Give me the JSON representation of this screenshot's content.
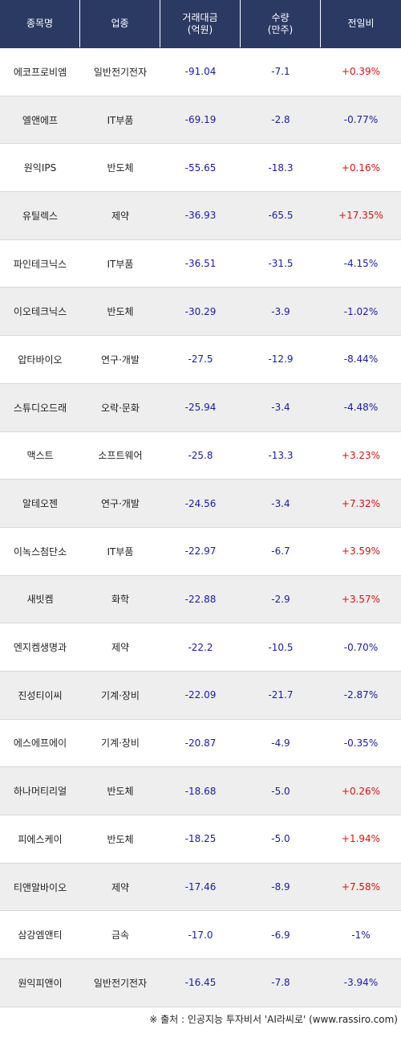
{
  "headers": [
    "종목명",
    "업종",
    "거래대금\n(억원)",
    "수량\n(만주)",
    "전일비"
  ],
  "rows": [
    {
      "name": "에코프로비엠",
      "sector": "일반전기전자",
      "amount": "-91.04",
      "qty": "-7.1",
      "change": "+0.39%"
    },
    {
      "name": "엘앤에프",
      "sector": "IT부품",
      "amount": "-69.19",
      "qty": "-2.8",
      "change": "-0.77%"
    },
    {
      "name": "원익IPS",
      "sector": "반도체",
      "amount": "-55.65",
      "qty": "-18.3",
      "change": "+0.16%"
    },
    {
      "name": "유틸렉스",
      "sector": "제약",
      "amount": "-36.93",
      "qty": "-65.5",
      "change": "+17.35%"
    },
    {
      "name": "파인테크닉스",
      "sector": "IT부품",
      "amount": "-36.51",
      "qty": "-31.5",
      "change": "-4.15%"
    },
    {
      "name": "이오테크닉스",
      "sector": "반도체",
      "amount": "-30.29",
      "qty": "-3.9",
      "change": "-1.02%"
    },
    {
      "name": "압타바이오",
      "sector": "연구·개발",
      "amount": "-27.5",
      "qty": "-12.9",
      "change": "-8.44%"
    },
    {
      "name": "스튜디오드래",
      "sector": "오락·문화",
      "amount": "-25.94",
      "qty": "-3.4",
      "change": "-4.48%"
    },
    {
      "name": "맥스트",
      "sector": "소프트웨어",
      "amount": "-25.8",
      "qty": "-13.3",
      "change": "+3.23%"
    },
    {
      "name": "알테오젠",
      "sector": "연구·개발",
      "amount": "-24.56",
      "qty": "-3.4",
      "change": "+7.32%"
    },
    {
      "name": "이녹스첨단소",
      "sector": "IT부품",
      "amount": "-22.97",
      "qty": "-6.7",
      "change": "+3.59%"
    },
    {
      "name": "새빗켐",
      "sector": "화학",
      "amount": "-22.88",
      "qty": "-2.9",
      "change": "+3.57%"
    },
    {
      "name": "엔지켐생명과",
      "sector": "제약",
      "amount": "-22.2",
      "qty": "-10.5",
      "change": "-0.70%"
    },
    {
      "name": "진성티이씨",
      "sector": "기계·장비",
      "amount": "-22.09",
      "qty": "-21.7",
      "change": "-2.87%"
    },
    {
      "name": "에스에프에이",
      "sector": "기계·장비",
      "amount": "-20.87",
      "qty": "-4.9",
      "change": "-0.35%"
    },
    {
      "name": "하나머티리얼",
      "sector": "반도체",
      "amount": "-18.68",
      "qty": "-5.0",
      "change": "+0.26%"
    },
    {
      "name": "피에스케이",
      "sector": "반도체",
      "amount": "-18.25",
      "qty": "-5.0",
      "change": "+1.94%"
    },
    {
      "name": "티앤알바이오",
      "sector": "제약",
      "amount": "-17.46",
      "qty": "-8.9",
      "change": "+7.58%"
    },
    {
      "name": "삼강엠앤티",
      "sector": "금속",
      "amount": "-17.0",
      "qty": "-6.9",
      "change": "-1%"
    },
    {
      "name": "원익피앤이",
      "sector": "일반전기전자",
      "amount": "-16.45",
      "qty": "-7.8",
      "change": "-3.94%"
    }
  ],
  "footer": "※ 출처 : 인공지능 투자비서 'AI라씨로' (www.rassiro.com)",
  "colors": {
    "header_bg": "#2b3a63",
    "negative": "#1a1aaa",
    "positive": "#dd1111",
    "alt_row": "#eeeeee"
  }
}
